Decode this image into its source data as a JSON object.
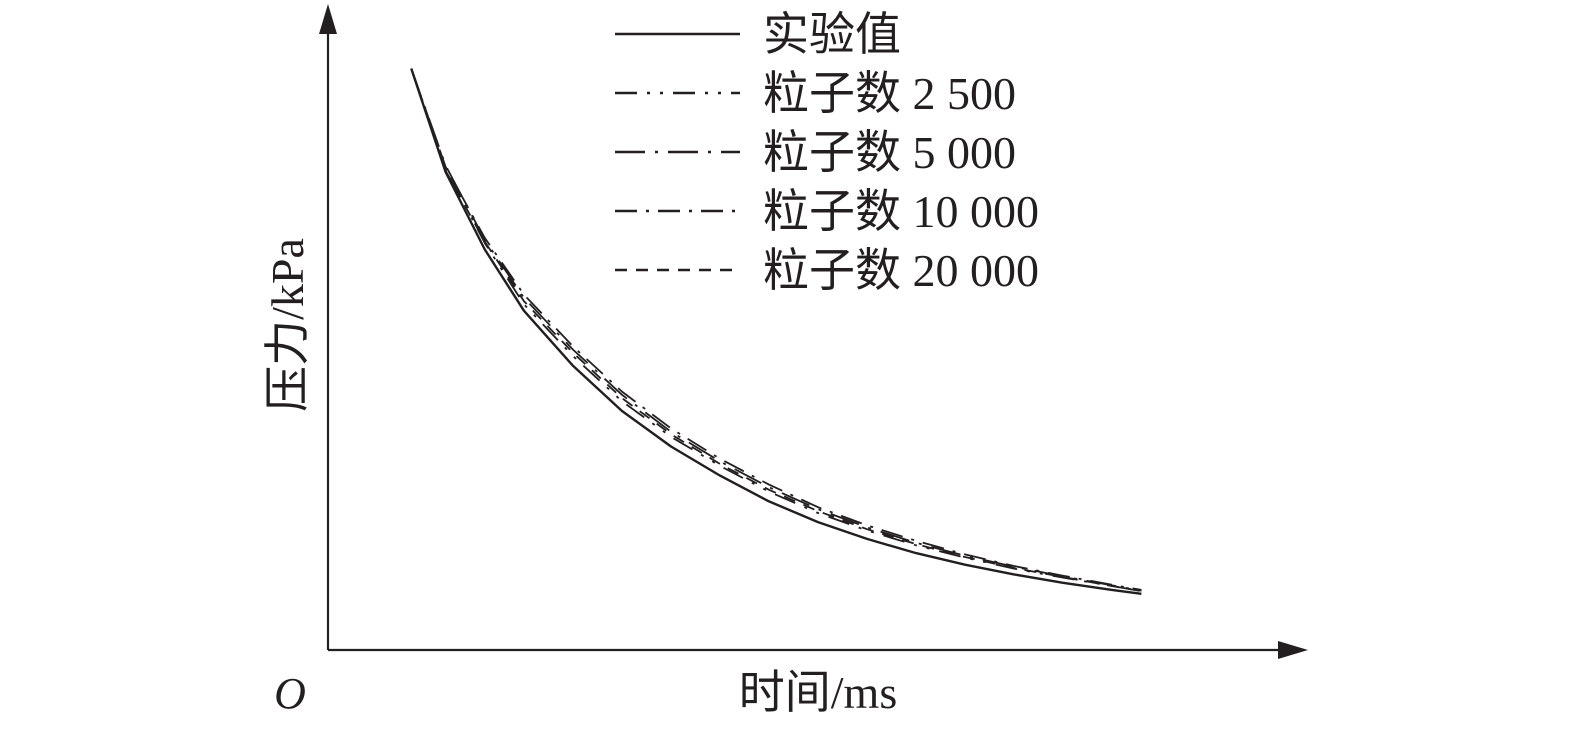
{
  "chart_data": {
    "type": "line",
    "title": "",
    "xlabel": "时间/ms",
    "ylabel": "压力/kPa",
    "origin_label": "O",
    "x_ticks": [],
    "y_ticks": [],
    "xlim": [
      0,
      100
    ],
    "ylim": [
      0,
      100
    ],
    "legend_position": "top-center",
    "grid": false,
    "colors": {
      "line": "#231f20",
      "axis": "#231f20",
      "background": "#ffffff"
    },
    "series": [
      {
        "name": "实验值",
        "style": "solid",
        "x": [
          8.5,
          12,
          16,
          20,
          25,
          30,
          35,
          40,
          45,
          50,
          55,
          60,
          65,
          70,
          75,
          80,
          83
        ],
        "y": [
          90.0,
          74.0,
          62.0,
          52.5,
          44.0,
          37.0,
          31.5,
          27.0,
          23.0,
          19.8,
          17.2,
          15.0,
          13.2,
          11.7,
          10.4,
          9.3,
          8.7
        ]
      },
      {
        "name": "粒子数 2 500",
        "style": "dash-dot-dot",
        "x": [
          8.5,
          12,
          16,
          20,
          25,
          30,
          35,
          40,
          45,
          50,
          55,
          60,
          65,
          70,
          75,
          80,
          83
        ],
        "y": [
          90.0,
          74.5,
          63.0,
          53.5,
          45.5,
          38.5,
          33.0,
          28.5,
          24.5,
          21.2,
          18.5,
          16.2,
          14.3,
          12.6,
          11.2,
          9.9,
          9.1
        ]
      },
      {
        "name": "粒子数 5 000",
        "style": "long-dash-dot",
        "x": [
          8.5,
          12,
          16,
          20,
          25,
          30,
          35,
          40,
          45,
          50,
          55,
          60,
          65,
          70,
          75,
          80,
          83
        ],
        "y": [
          90.0,
          75.0,
          63.5,
          54.5,
          46.5,
          39.5,
          33.8,
          29.2,
          25.2,
          21.8,
          19.0,
          16.6,
          14.6,
          12.9,
          11.4,
          10.0,
          9.2
        ]
      },
      {
        "name": "粒子数 10 000",
        "style": "dash-dot",
        "x": [
          8.5,
          12,
          16,
          20,
          25,
          30,
          35,
          40,
          45,
          50,
          55,
          60,
          65,
          70,
          75,
          80,
          83
        ],
        "y": [
          90.0,
          74.8,
          63.8,
          55.0,
          47.0,
          40.0,
          34.3,
          29.6,
          25.6,
          22.1,
          19.3,
          16.9,
          14.8,
          13.0,
          11.5,
          10.1,
          9.3
        ]
      },
      {
        "name": "粒子数 20 000",
        "style": "dashed",
        "x": [
          8.5,
          12,
          16,
          20,
          25,
          30,
          35,
          40,
          45,
          50,
          55,
          60,
          65,
          70,
          75,
          80,
          83
        ],
        "y": [
          90.0,
          74.2,
          63.2,
          54.0,
          46.0,
          39.0,
          33.4,
          28.8,
          24.8,
          21.5,
          18.7,
          16.4,
          14.4,
          12.7,
          11.3,
          9.9,
          9.1
        ]
      }
    ]
  }
}
